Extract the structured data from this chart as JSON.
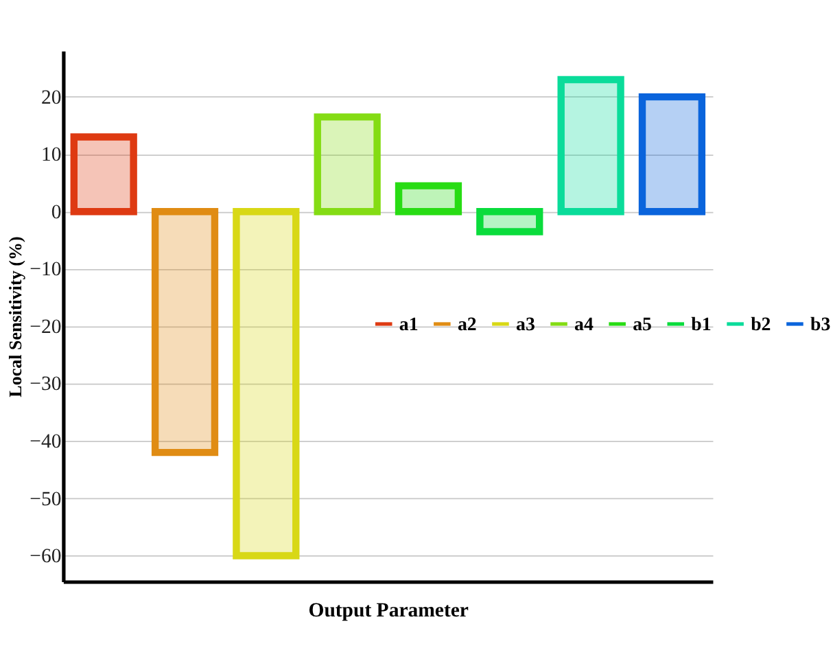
{
  "chart_data": {
    "type": "bar",
    "xlabel": "Output Parameter",
    "ylabel": "Local Sensitivity  (%)",
    "categories": [
      null,
      null,
      null,
      null,
      null,
      null,
      null,
      null
    ],
    "series": [
      {
        "name": "a1",
        "color": "#de3a12",
        "values": [
          13,
          null,
          null,
          null,
          null,
          null,
          null,
          null
        ]
      },
      {
        "name": "a2",
        "color": "#e08c14",
        "values": [
          null,
          -42,
          null,
          null,
          null,
          null,
          null,
          null
        ]
      },
      {
        "name": "a3",
        "color": "#d8d816",
        "values": [
          null,
          null,
          -60,
          null,
          null,
          null,
          null,
          null
        ]
      },
      {
        "name": "a4",
        "color": "#84dc14",
        "values": [
          null,
          null,
          null,
          16.5,
          null,
          null,
          null,
          null
        ]
      },
      {
        "name": "a5",
        "color": "#28dc14",
        "values": [
          null,
          null,
          null,
          null,
          4.5,
          null,
          null,
          null
        ]
      },
      {
        "name": "b1",
        "color": "#0adc3c",
        "values": [
          null,
          null,
          null,
          null,
          null,
          -3.5,
          null,
          null
        ]
      },
      {
        "name": "b2",
        "color": "#0adc9a",
        "values": [
          null,
          null,
          null,
          null,
          null,
          null,
          23,
          null
        ]
      },
      {
        "name": "b3",
        "color": "#0a64dc",
        "values": [
          null,
          null,
          null,
          null,
          null,
          null,
          null,
          20
        ]
      }
    ],
    "ylim": [
      -64.5,
      28
    ],
    "yticks": [
      -60,
      -50,
      -40,
      -30,
      -20,
      -10,
      0,
      10,
      20
    ],
    "grid": "y",
    "legend": "right"
  }
}
